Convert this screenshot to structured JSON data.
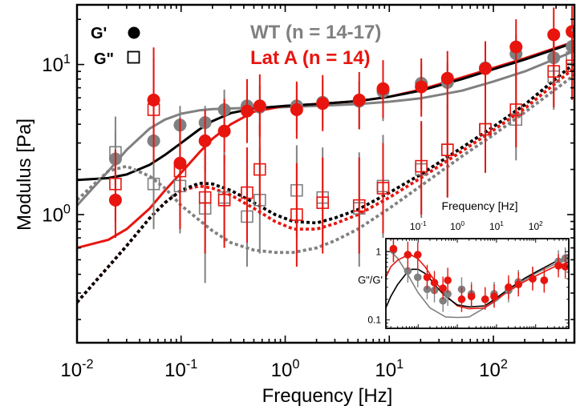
{
  "colors": {
    "wt": "#808080",
    "lata": "#e8150f",
    "fit_black": "#000000",
    "text": "#000000"
  },
  "chart_data": [
    {
      "type": "scatter",
      "xlabel": "Frequency [Hz]",
      "ylabel": "Modulus [Pa]",
      "xscale": "log",
      "yscale": "log",
      "xlim": [
        0.01,
        600
      ],
      "ylim": [
        0.14,
        25
      ],
      "x_ticks": [
        {
          "value": 0.01,
          "base": "10",
          "exp": "-2"
        },
        {
          "value": 0.1,
          "base": "10",
          "exp": "-1"
        },
        {
          "value": 1,
          "base": "10",
          "exp": "0"
        },
        {
          "value": 10,
          "base": "10",
          "exp": "1"
        },
        {
          "value": 100,
          "base": "10",
          "exp": "2"
        }
      ],
      "y_ticks": [
        {
          "value": 1,
          "base": "10",
          "exp": "0"
        },
        {
          "value": 10,
          "base": "10",
          "exp": "1"
        }
      ],
      "legend": {
        "markers": [
          {
            "label": "G'",
            "symbol": "filled-circle"
          },
          {
            "label": "G\"",
            "symbol": "open-square"
          }
        ],
        "groups": [
          {
            "label": "WT (n = 14-17)",
            "color": "#808080"
          },
          {
            "label": "Lat A (n = 14)",
            "color": "#e8150f"
          }
        ]
      },
      "series": [
        {
          "group": "WT",
          "modulus": "G'",
          "color": "#808080",
          "x": [
            0.0234,
            0.0545,
            0.0977,
            0.17,
            0.26,
            0.43,
            0.57,
            1.29,
            2.29,
            5.14,
            8.71,
            20.3,
            36.2,
            83.7,
            165,
            380,
            570
          ],
          "y": [
            2.35,
            3.1,
            3.95,
            4.1,
            5.0,
            5.3,
            5.2,
            5.3,
            5.6,
            5.7,
            6.6,
            7.5,
            7.6,
            9.5,
            11.8,
            11.1,
            13.2
          ],
          "err_lo": [
            1.6,
            2.2,
            2.6,
            2.7,
            3.3,
            3.6,
            3.4,
            3.6,
            3.8,
            3.7,
            4.2,
            5.0,
            5.0,
            6.4,
            8.0,
            7.2,
            8.6
          ],
          "err_hi": [
            3.6,
            4.5,
            5.3,
            5.3,
            6.8,
            7.2,
            7.3,
            7.4,
            7.9,
            7.7,
            8.8,
            10.2,
            10.3,
            13.0,
            15.8,
            15.3,
            17.6
          ]
        },
        {
          "group": "Lat A",
          "modulus": "G'",
          "color": "#e8150f",
          "x": [
            0.0234,
            0.0545,
            0.0977,
            0.17,
            0.26,
            0.43,
            0.57,
            1.29,
            2.29,
            5.14,
            8.71,
            20.3,
            36.2,
            83.7,
            165,
            380,
            570
          ],
          "y": [
            1.25,
            5.8,
            2.2,
            3.1,
            3.6,
            4.9,
            5.3,
            5.0,
            5.5,
            5.8,
            6.9,
            7.1,
            8.1,
            9.4,
            13.1,
            15.8,
            16.6
          ],
          "err_lo": [
            0.7,
            3.2,
            1.1,
            1.9,
            2.2,
            3.0,
            3.3,
            3.2,
            3.6,
            3.7,
            4.4,
            4.5,
            5.3,
            6.2,
            8.5,
            10.5,
            10.8
          ],
          "err_hi": [
            2.3,
            13.0,
            4.4,
            5.0,
            5.9,
            8.0,
            8.6,
            7.7,
            8.5,
            8.9,
            10.7,
            11.0,
            12.3,
            14.3,
            20.0,
            24.0,
            24.5
          ]
        },
        {
          "group": "WT",
          "modulus": "G\"",
          "color": "#808080",
          "x": [
            0.0234,
            0.0545,
            0.0977,
            0.17,
            0.26,
            0.43,
            0.57,
            1.29,
            2.29,
            5.14,
            8.71,
            20.3,
            36.2,
            83.7,
            165,
            380,
            570
          ],
          "y": [
            2.6,
            1.6,
            1.55,
            1.1,
            1.3,
            0.97,
            1.25,
            1.45,
            1.3,
            1.1,
            1.55,
            2.0,
            2.7,
            3.7,
            4.3,
            8.3,
            11.1
          ],
          "err_lo": [
            1.5,
            0.8,
            0.75,
            0.35,
            0.65,
            0.45,
            0.55,
            0.7,
            0.6,
            0.45,
            0.7,
            0.95,
            1.3,
            1.9,
            2.3,
            5.0,
            6.9
          ],
          "err_hi": [
            4.5,
            3.3,
            3.2,
            2.6,
            2.6,
            2.1,
            2.8,
            2.9,
            2.8,
            2.6,
            3.4,
            4.1,
            5.4,
            7.0,
            8.0,
            13.0,
            17.3
          ]
        },
        {
          "group": "Lat A",
          "modulus": "G\"",
          "color": "#e8150f",
          "x": [
            0.0234,
            0.0545,
            0.0977,
            0.17,
            0.26,
            0.43,
            0.57,
            1.29,
            2.29,
            5.14,
            8.71,
            20.3,
            36.2,
            83.7,
            165,
            380,
            570
          ],
          "y": [
            1.6,
            5.0,
            1.95,
            1.3,
            1.25,
            1.4,
            2.0,
            1.0,
            1.2,
            1.15,
            1.5,
            2.1,
            2.7,
            3.7,
            5.0,
            9.0,
            9.8
          ],
          "err_lo": [
            0.9,
            2.2,
            0.8,
            0.55,
            0.6,
            0.65,
            1.0,
            0.45,
            0.55,
            0.55,
            0.75,
            1.0,
            1.3,
            1.9,
            2.8,
            5.2,
            5.8
          ],
          "err_hi": [
            2.7,
            11.0,
            4.3,
            2.8,
            2.5,
            2.8,
            4.0,
            2.2,
            2.4,
            2.4,
            3.0,
            4.2,
            5.4,
            7.2,
            9.5,
            15.8,
            16.6
          ]
        }
      ],
      "fits": [
        {
          "name": "G' fit",
          "group": "WT",
          "style": "solid",
          "color": "#808080",
          "x": [
            0.01,
            0.02,
            0.03,
            0.05,
            0.07,
            0.1,
            0.15,
            0.2,
            0.3,
            0.5,
            1,
            2,
            5,
            10,
            20,
            50,
            100,
            200,
            600
          ],
          "y": [
            1.15,
            1.95,
            2.7,
            3.75,
            4.3,
            4.7,
            4.95,
            5.05,
            5.1,
            5.15,
            5.2,
            5.3,
            5.45,
            5.65,
            5.95,
            6.7,
            7.7,
            9.0,
            12.3
          ]
        },
        {
          "name": "G' fit",
          "group": "Lat A",
          "style": "solid",
          "color": "#e8150f",
          "x": [
            0.01,
            0.02,
            0.03,
            0.05,
            0.07,
            0.1,
            0.15,
            0.2,
            0.3,
            0.5,
            1,
            2,
            5,
            10,
            20,
            50,
            100,
            200,
            600
          ],
          "y": [
            0.6,
            0.68,
            0.8,
            1.1,
            1.45,
            1.9,
            2.6,
            3.2,
            4.0,
            4.85,
            5.3,
            5.45,
            5.7,
            6.1,
            6.8,
            8.2,
            9.5,
            11.0,
            14.2
          ]
        },
        {
          "name": "G' fit",
          "group": "combined",
          "style": "solid",
          "color": "#000000",
          "x": [
            0.01,
            0.02,
            0.03,
            0.05,
            0.07,
            0.1,
            0.15,
            0.2,
            0.3,
            0.5,
            1,
            2,
            5,
            10,
            20,
            50,
            100,
            200,
            600
          ],
          "y": [
            1.7,
            1.75,
            1.85,
            2.15,
            2.5,
            3.0,
            3.7,
            4.2,
            4.75,
            5.1,
            5.3,
            5.45,
            5.7,
            6.1,
            6.7,
            8.0,
            9.3,
            10.8,
            14.0
          ]
        },
        {
          "name": "G\" fit",
          "group": "WT",
          "style": "dotted",
          "color": "#808080",
          "x": [
            0.01,
            0.02,
            0.03,
            0.05,
            0.07,
            0.1,
            0.2,
            0.3,
            0.5,
            0.8,
            1.2,
            2,
            3,
            5,
            10,
            20,
            50,
            100,
            200,
            600
          ],
          "y": [
            1.25,
            1.95,
            2.1,
            1.8,
            1.5,
            1.15,
            0.78,
            0.65,
            0.58,
            0.56,
            0.56,
            0.6,
            0.67,
            0.8,
            1.1,
            1.55,
            2.45,
            3.4,
            4.8,
            8.5
          ]
        },
        {
          "name": "G\" fit",
          "group": "Lat A",
          "style": "dotted",
          "color": "#e8150f",
          "x": [
            0.01,
            0.02,
            0.03,
            0.05,
            0.07,
            0.1,
            0.15,
            0.2,
            0.3,
            0.5,
            0.8,
            1.2,
            2,
            3,
            5,
            10,
            20,
            50,
            100,
            200,
            600
          ],
          "y": [
            0.26,
            0.45,
            0.62,
            0.95,
            1.2,
            1.45,
            1.55,
            1.5,
            1.35,
            1.1,
            0.9,
            0.8,
            0.8,
            0.87,
            1.0,
            1.3,
            1.75,
            2.65,
            3.65,
            5.1,
            9.5
          ]
        },
        {
          "name": "G\" fit",
          "group": "combined",
          "style": "dotted",
          "color": "#000000",
          "x": [
            0.01,
            0.02,
            0.03,
            0.05,
            0.07,
            0.1,
            0.15,
            0.2,
            0.3,
            0.5,
            0.8,
            1.2,
            2,
            3,
            5,
            10,
            20,
            50,
            100,
            200,
            600
          ],
          "y": [
            0.26,
            0.45,
            0.62,
            0.95,
            1.2,
            1.45,
            1.62,
            1.6,
            1.45,
            1.2,
            1.0,
            0.9,
            0.88,
            0.95,
            1.08,
            1.4,
            1.85,
            2.8,
            3.85,
            5.4,
            10.2
          ]
        }
      ]
    },
    {
      "type": "scatter",
      "role": "inset",
      "xlabel": "Frequency [Hz]",
      "ylabel": "G\"/G'",
      "xscale": "log",
      "yscale": "log",
      "xlim": [
        0.015,
        700
      ],
      "ylim": [
        0.075,
        1.55
      ],
      "x_ticks": [
        {
          "value": 0.1,
          "base": "10",
          "exp": "-1"
        },
        {
          "value": 1,
          "base": "10",
          "exp": "0"
        },
        {
          "value": 10,
          "base": "10",
          "exp": "1"
        },
        {
          "value": 100,
          "base": "10",
          "exp": "2"
        }
      ],
      "y_ticks": [
        {
          "value": 1,
          "label": "1"
        },
        {
          "value": 0.1,
          "label": "0.1"
        }
      ],
      "series": [
        {
          "group": "WT",
          "color": "#808080",
          "x": [
            0.0234,
            0.0545,
            0.0977,
            0.17,
            0.26,
            0.43,
            0.57,
            1.29,
            2.29,
            5.14,
            8.71,
            20.3,
            36.2,
            83.7,
            165,
            380,
            570
          ],
          "y": [
            1.05,
            0.52,
            0.42,
            0.28,
            0.27,
            0.19,
            0.24,
            0.28,
            0.24,
            0.2,
            0.24,
            0.27,
            0.36,
            0.4,
            0.38,
            0.72,
            0.8
          ],
          "err_lo": [
            0.7,
            0.35,
            0.3,
            0.2,
            0.18,
            0.13,
            0.16,
            0.18,
            0.16,
            0.14,
            0.16,
            0.18,
            0.24,
            0.27,
            0.26,
            0.5,
            0.56
          ],
          "err_hi": [
            1.5,
            0.78,
            0.6,
            0.42,
            0.4,
            0.29,
            0.36,
            0.42,
            0.36,
            0.3,
            0.36,
            0.4,
            0.54,
            0.6,
            0.57,
            1.05,
            1.15
          ]
        },
        {
          "group": "Lat A",
          "color": "#e8150f",
          "x": [
            0.0234,
            0.0545,
            0.0977,
            0.17,
            0.26,
            0.43,
            0.57,
            1.29,
            2.29,
            5.14,
            8.71,
            20.3,
            36.2,
            83.7,
            165,
            380,
            570
          ],
          "y": [
            1.1,
            0.9,
            0.9,
            0.42,
            0.35,
            0.29,
            0.38,
            0.2,
            0.22,
            0.2,
            0.22,
            0.3,
            0.33,
            0.4,
            0.38,
            0.62,
            0.6
          ],
          "err_lo": [
            0.7,
            0.55,
            0.55,
            0.28,
            0.24,
            0.2,
            0.25,
            0.13,
            0.15,
            0.14,
            0.15,
            0.2,
            0.22,
            0.27,
            0.25,
            0.42,
            0.4
          ],
          "err_hi": [
            1.6,
            1.4,
            1.35,
            0.64,
            0.52,
            0.43,
            0.58,
            0.3,
            0.33,
            0.3,
            0.33,
            0.45,
            0.5,
            0.6,
            0.58,
            0.92,
            0.9
          ]
        }
      ],
      "fits": [
        {
          "group": "WT",
          "color": "#808080",
          "x": [
            0.015,
            0.02,
            0.03,
            0.05,
            0.1,
            0.2,
            0.5,
            1,
            2,
            5,
            10,
            20,
            50,
            100,
            300,
            700
          ],
          "y": [
            1.0,
            1.0,
            0.8,
            0.5,
            0.25,
            0.15,
            0.11,
            0.108,
            0.11,
            0.15,
            0.19,
            0.27,
            0.38,
            0.48,
            0.65,
            0.76
          ]
        },
        {
          "group": "Lat A",
          "color": "#e8150f",
          "x": [
            0.015,
            0.02,
            0.03,
            0.05,
            0.07,
            0.1,
            0.15,
            0.2,
            0.3,
            0.5,
            1,
            2,
            5,
            10,
            20,
            50,
            100,
            300,
            700
          ],
          "y": [
            0.42,
            0.6,
            0.75,
            0.87,
            0.88,
            0.78,
            0.6,
            0.47,
            0.34,
            0.23,
            0.16,
            0.145,
            0.15,
            0.2,
            0.26,
            0.36,
            0.44,
            0.6,
            0.7
          ]
        },
        {
          "group": "combined",
          "color": "#000000",
          "x": [
            0.015,
            0.02,
            0.03,
            0.05,
            0.07,
            0.1,
            0.15,
            0.2,
            0.3,
            0.5,
            1,
            2,
            5,
            10,
            20,
            50,
            100,
            300,
            700
          ],
          "y": [
            0.15,
            0.22,
            0.33,
            0.48,
            0.55,
            0.55,
            0.48,
            0.4,
            0.3,
            0.22,
            0.165,
            0.155,
            0.16,
            0.21,
            0.28,
            0.4,
            0.5,
            0.7,
            0.85
          ]
        }
      ]
    }
  ]
}
